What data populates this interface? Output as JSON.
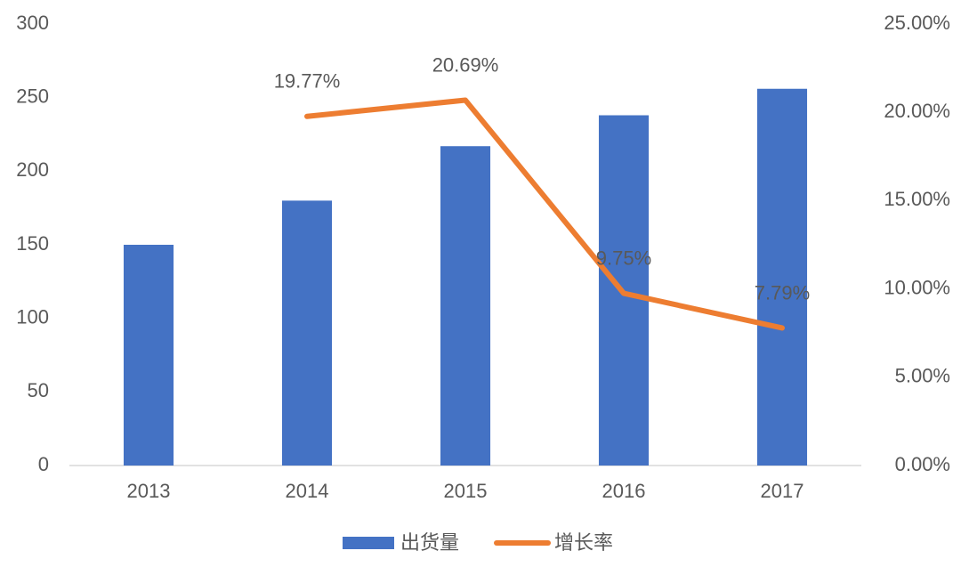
{
  "chart_data": {
    "type": "bar",
    "categories": [
      "2013",
      "2014",
      "2015",
      "2016",
      "2017"
    ],
    "series": [
      {
        "name": "出货量",
        "color": "#4472c4",
        "type": "bar",
        "values": [
          150,
          180,
          217,
          238,
          256
        ]
      },
      {
        "name": "增长率",
        "color": "#ed7d31",
        "type": "line",
        "axis": "y2",
        "values": [
          null,
          19.77,
          20.69,
          9.75,
          7.79
        ],
        "value_labels": [
          null,
          "19.77%",
          "20.69%",
          "9.75%",
          "7.79%"
        ]
      }
    ],
    "ylim": [
      0,
      300
    ],
    "yticks": [
      0,
      50,
      100,
      150,
      200,
      250,
      300
    ],
    "y2lim": [
      0,
      25
    ],
    "y2ticks": [
      {
        "value": 0,
        "label": "0.00%"
      },
      {
        "value": 5,
        "label": "5.00%"
      },
      {
        "value": 10,
        "label": "10.00%"
      },
      {
        "value": 15,
        "label": "15.00%"
      },
      {
        "value": 20,
        "label": "20.00%"
      },
      {
        "value": 25,
        "label": "25.00%"
      }
    ],
    "legend": "bottom"
  }
}
